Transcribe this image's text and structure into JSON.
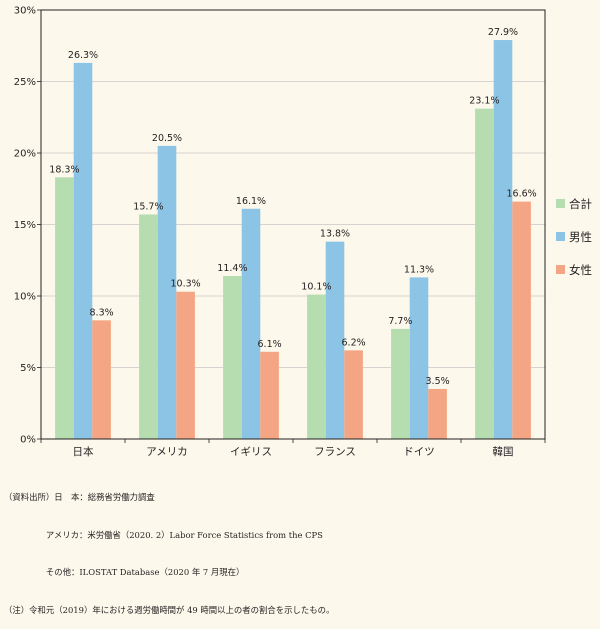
{
  "chart_data": {
    "type": "bar",
    "categories": [
      "日本",
      "アメリカ",
      "イギリス",
      "フランス",
      "ドイツ",
      "韓国"
    ],
    "series": [
      {
        "name": "合計",
        "values": [
          18.3,
          15.7,
          11.4,
          10.1,
          7.7,
          23.1
        ],
        "color": "#b5ddb0"
      },
      {
        "name": "男性",
        "values": [
          26.3,
          20.5,
          16.1,
          13.8,
          11.3,
          27.9
        ],
        "color": "#8cc4e6"
      },
      {
        "name": "女性",
        "values": [
          8.3,
          10.3,
          6.1,
          6.2,
          3.5,
          16.6
        ],
        "color": "#f4a684"
      }
    ],
    "yticks": [
      "0%",
      "5%",
      "10%",
      "15%",
      "20%",
      "25%",
      "30%"
    ],
    "ylim": [
      0,
      30
    ],
    "value_suffix": "%",
    "grid": true,
    "legend_position": "right"
  },
  "notes": [
    "（資料出所）日　本：総務省労働力調査",
    "　　　　　アメリカ：米労働省（2020. 2）Labor Force Statistics from the CPS",
    "　　　　　その他：ILOSTAT Database（2020 年 7 月現在）",
    "（注）令和元（2019）年における週労働時間が 49 時間以上の者の割合を示したもの。"
  ]
}
